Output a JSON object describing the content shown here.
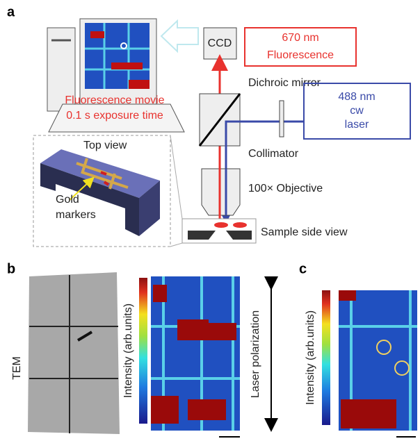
{
  "panels": {
    "a": {
      "label": "a",
      "ccd": "CCD",
      "emission": [
        "670 nm",
        "Fluorescence"
      ],
      "dichroic": "Dichroic mirror",
      "laser": [
        "488 nm",
        "cw",
        "laser"
      ],
      "movie": [
        "Fluorescence movie",
        "0.1 s exposure time"
      ],
      "top_view": "Top view",
      "collimator": "Collimator",
      "objective": "100× Objective",
      "gold": [
        "Gold",
        "markers"
      ],
      "sample": "Sample side view"
    },
    "b": {
      "label": "b",
      "tem": "TEM",
      "colorbar": "Intensity (arb.units)",
      "polarization": "Laser polarization"
    },
    "c": {
      "label": "c",
      "colorbar": "Intensity (arb.units)"
    }
  }
}
